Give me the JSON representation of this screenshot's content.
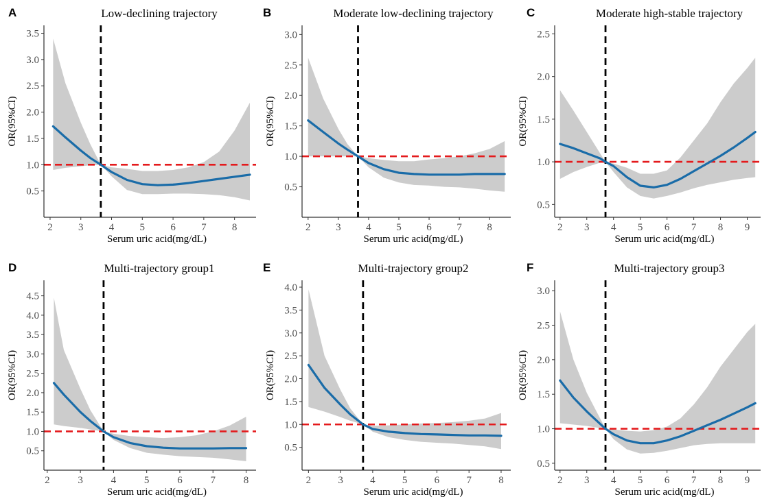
{
  "chart_data": [
    {
      "panel": "A",
      "type": "line",
      "title": "Low-declining trajectory",
      "xlabel": "Serum uric acid(mg/dL)",
      "ylabel": "OR(95%CI)",
      "xlim": [
        1.8,
        8.7
      ],
      "ylim": [
        0.0,
        3.65
      ],
      "xticks": [
        2,
        3,
        4,
        5,
        6,
        7,
        8
      ],
      "yticks": [
        0.5,
        1.0,
        1.5,
        2.0,
        2.5,
        3.0,
        3.5
      ],
      "ytick_labels": [
        "0.5",
        "1.0",
        "1.5",
        "2.0",
        "2.5",
        "3.0",
        "3.5"
      ],
      "reference_x": 3.65,
      "reference_y": 1.0,
      "colors": {
        "curve": "#1a6ca8",
        "band": "#cccccc",
        "ref_h": "#e41a1c",
        "ref_v": "#000000"
      },
      "series": [
        {
          "name": "",
          "x": [
            2.1,
            2.5,
            3.0,
            3.3,
            3.65,
            4.0,
            4.5,
            5.0,
            5.5,
            6.0,
            6.5,
            7.0,
            7.5,
            8.0,
            8.5
          ],
          "y": [
            1.73,
            1.52,
            1.27,
            1.13,
            1.0,
            0.86,
            0.71,
            0.63,
            0.61,
            0.62,
            0.65,
            0.69,
            0.73,
            0.77,
            0.81
          ]
        },
        {
          "name": "",
          "x": [
            2.1,
            2.5,
            3.0,
            3.3,
            3.65,
            4.0,
            4.5,
            5.0,
            5.5,
            6.0,
            6.5,
            7.0,
            7.5,
            8.0,
            8.5
          ],
          "lower": [
            0.9,
            0.94,
            0.97,
            0.99,
            1.0,
            0.78,
            0.52,
            0.44,
            0.44,
            0.45,
            0.45,
            0.44,
            0.42,
            0.38,
            0.32
          ],
          "upper": [
            3.4,
            2.55,
            1.8,
            1.4,
            1.0,
            0.95,
            0.92,
            0.88,
            0.88,
            0.9,
            0.95,
            1.05,
            1.25,
            1.65,
            2.18
          ]
        }
      ]
    },
    {
      "panel": "B",
      "type": "line",
      "title": "Moderate low-declining trajectory",
      "xlabel": "Serum uric acid(mg/dL)",
      "ylabel": "OR(95%CI)",
      "xlim": [
        1.8,
        8.7
      ],
      "ylim": [
        0.0,
        3.15
      ],
      "xticks": [
        2,
        3,
        4,
        5,
        6,
        7,
        8
      ],
      "yticks": [
        0.5,
        1.0,
        1.5,
        2.0,
        2.5,
        3.0
      ],
      "ytick_labels": [
        "0.5",
        "1.0",
        "1.5",
        "2.0",
        "2.5",
        "3.0"
      ],
      "reference_x": 3.65,
      "reference_y": 1.0,
      "colors": {
        "curve": "#1a6ca8",
        "band": "#cccccc",
        "ref_h": "#e41a1c",
        "ref_v": "#000000"
      },
      "series": [
        {
          "name": "",
          "x": [
            2.0,
            2.5,
            3.0,
            3.3,
            3.65,
            4.0,
            4.5,
            5.0,
            5.5,
            6.0,
            6.5,
            7.0,
            7.5,
            8.0,
            8.5
          ],
          "y": [
            1.59,
            1.4,
            1.21,
            1.11,
            1.0,
            0.89,
            0.79,
            0.73,
            0.71,
            0.7,
            0.7,
            0.7,
            0.71,
            0.71,
            0.71
          ]
        },
        {
          "name": "",
          "x": [
            2.0,
            2.5,
            3.0,
            3.3,
            3.65,
            4.0,
            4.5,
            5.0,
            5.5,
            6.0,
            6.5,
            7.0,
            7.5,
            8.0,
            8.5
          ],
          "lower": [
            1.0,
            1.0,
            1.0,
            1.0,
            1.0,
            0.82,
            0.65,
            0.57,
            0.53,
            0.52,
            0.5,
            0.49,
            0.47,
            0.44,
            0.42
          ],
          "upper": [
            2.62,
            1.95,
            1.45,
            1.2,
            1.0,
            0.97,
            0.94,
            0.92,
            0.92,
            0.95,
            0.97,
            1.0,
            1.05,
            1.12,
            1.25
          ]
        }
      ]
    },
    {
      "panel": "C",
      "type": "line",
      "title": "Moderate high-stable trajectory",
      "xlabel": "Serum uric acid(mg/dL)",
      "ylabel": "OR(95%CI)",
      "xlim": [
        1.8,
        9.5
      ],
      "ylim": [
        0.35,
        2.6
      ],
      "xticks": [
        2,
        3,
        4,
        5,
        6,
        7,
        8,
        9
      ],
      "yticks": [
        0.5,
        1.0,
        1.5,
        2.0,
        2.5
      ],
      "ytick_labels": [
        "0.5",
        "1.0",
        "1.5",
        "2.0",
        "2.5"
      ],
      "reference_x": 3.7,
      "reference_y": 1.0,
      "colors": {
        "curve": "#1a6ca8",
        "band": "#cccccc",
        "ref_h": "#e41a1c",
        "ref_v": "#000000"
      },
      "series": [
        {
          "name": "",
          "x": [
            2.0,
            2.5,
            3.0,
            3.5,
            3.7,
            4.0,
            4.5,
            5.0,
            5.5,
            6.0,
            6.5,
            7.0,
            7.5,
            8.0,
            8.5,
            9.0,
            9.3
          ],
          "y": [
            1.21,
            1.16,
            1.1,
            1.04,
            1.0,
            0.95,
            0.82,
            0.72,
            0.7,
            0.73,
            0.8,
            0.89,
            0.98,
            1.07,
            1.17,
            1.28,
            1.35
          ]
        },
        {
          "name": "",
          "x": [
            2.0,
            2.5,
            3.0,
            3.5,
            3.7,
            4.0,
            4.5,
            5.0,
            5.5,
            6.0,
            6.5,
            7.0,
            7.5,
            8.0,
            8.5,
            9.0,
            9.3
          ],
          "lower": [
            0.8,
            0.88,
            0.94,
            0.99,
            1.0,
            0.88,
            0.7,
            0.6,
            0.57,
            0.6,
            0.64,
            0.69,
            0.73,
            0.76,
            0.79,
            0.81,
            0.82
          ],
          "upper": [
            1.84,
            1.6,
            1.35,
            1.1,
            1.0,
            0.98,
            0.93,
            0.86,
            0.86,
            0.9,
            1.05,
            1.25,
            1.45,
            1.7,
            1.92,
            2.1,
            2.22
          ]
        }
      ]
    },
    {
      "panel": "D",
      "type": "line",
      "title": "Multi-trajectory group1",
      "xlabel": "Serum uric acid(mg/dL)",
      "ylabel": "OR(95%CI)",
      "xlim": [
        1.9,
        8.3
      ],
      "ylim": [
        0.0,
        4.9
      ],
      "xticks": [
        2,
        3,
        4,
        5,
        6,
        7,
        8
      ],
      "yticks": [
        0.5,
        1.0,
        1.5,
        2.0,
        2.5,
        3.0,
        3.5,
        4.0,
        4.5
      ],
      "ytick_labels": [
        "0.5",
        "1.0",
        "1.5",
        "2.0",
        "2.5",
        "3.0",
        "3.5",
        "4.0",
        "4.5"
      ],
      "reference_x": 3.7,
      "reference_y": 1.0,
      "colors": {
        "curve": "#1a6ca8",
        "band": "#cccccc",
        "ref_h": "#e41a1c",
        "ref_v": "#000000"
      },
      "series": [
        {
          "name": "",
          "x": [
            2.2,
            2.5,
            3.0,
            3.3,
            3.7,
            4.0,
            4.5,
            5.0,
            5.5,
            6.0,
            6.5,
            7.0,
            7.5,
            8.0
          ],
          "y": [
            2.25,
            1.95,
            1.5,
            1.27,
            1.0,
            0.85,
            0.7,
            0.62,
            0.58,
            0.56,
            0.56,
            0.56,
            0.57,
            0.57
          ]
        },
        {
          "name": "",
          "x": [
            2.2,
            2.5,
            3.0,
            3.3,
            3.7,
            4.0,
            4.5,
            5.0,
            5.5,
            6.0,
            6.5,
            7.0,
            7.5,
            8.0
          ],
          "lower": [
            1.18,
            1.14,
            1.09,
            1.05,
            1.0,
            0.78,
            0.57,
            0.45,
            0.4,
            0.36,
            0.34,
            0.32,
            0.28,
            0.23
          ],
          "upper": [
            4.45,
            3.1,
            2.1,
            1.55,
            1.0,
            0.94,
            0.88,
            0.85,
            0.83,
            0.85,
            0.9,
            1.0,
            1.15,
            1.38
          ]
        }
      ]
    },
    {
      "panel": "E",
      "type": "line",
      "title": "Multi-trajectory group2",
      "xlabel": "Serum uric acid(mg/dL)",
      "ylabel": "OR(95%CI)",
      "xlim": [
        1.8,
        8.3
      ],
      "ylim": [
        0.0,
        4.15
      ],
      "xticks": [
        2,
        3,
        4,
        5,
        6,
        7,
        8
      ],
      "yticks": [
        0.5,
        1.0,
        1.5,
        2.0,
        2.5,
        3.0,
        3.5,
        4.0
      ],
      "ytick_labels": [
        "0.5",
        "1.0",
        "1.5",
        "2.0",
        "2.5",
        "3.0",
        "3.5",
        "4.0"
      ],
      "reference_x": 3.7,
      "reference_y": 1.0,
      "colors": {
        "curve": "#1a6ca8",
        "band": "#cccccc",
        "ref_h": "#e41a1c",
        "ref_v": "#000000"
      },
      "series": [
        {
          "name": "",
          "x": [
            2.0,
            2.5,
            3.0,
            3.3,
            3.7,
            4.0,
            4.5,
            5.0,
            5.5,
            6.0,
            6.5,
            7.0,
            7.5,
            8.0
          ],
          "y": [
            2.3,
            1.8,
            1.43,
            1.22,
            1.0,
            0.9,
            0.84,
            0.81,
            0.79,
            0.78,
            0.77,
            0.76,
            0.76,
            0.75
          ]
        },
        {
          "name": "",
          "x": [
            2.0,
            2.5,
            3.0,
            3.3,
            3.7,
            4.0,
            4.5,
            5.0,
            5.5,
            6.0,
            6.5,
            7.0,
            7.5,
            8.0
          ],
          "lower": [
            1.38,
            1.28,
            1.16,
            1.08,
            1.0,
            0.84,
            0.72,
            0.66,
            0.62,
            0.6,
            0.58,
            0.55,
            0.52,
            0.46
          ],
          "upper": [
            3.95,
            2.5,
            1.75,
            1.35,
            1.0,
            0.97,
            0.98,
            1.0,
            1.02,
            1.03,
            1.05,
            1.08,
            1.13,
            1.25
          ]
        }
      ]
    },
    {
      "panel": "F",
      "type": "line",
      "title": "Multi-trajectory group3",
      "xlabel": "Serum uric acid(mg/dL)",
      "ylabel": "OR(95%CI)",
      "xlim": [
        1.8,
        9.5
      ],
      "ylim": [
        0.4,
        3.15
      ],
      "xticks": [
        2,
        3,
        4,
        5,
        6,
        7,
        8,
        9
      ],
      "yticks": [
        0.5,
        1.0,
        1.5,
        2.0,
        2.5,
        3.0
      ],
      "ytick_labels": [
        "0.5",
        "1.0",
        "1.5",
        "2.0",
        "2.5",
        "3.0"
      ],
      "reference_x": 3.7,
      "reference_y": 1.0,
      "colors": {
        "curve": "#1a6ca8",
        "band": "#cccccc",
        "ref_h": "#e41a1c",
        "ref_v": "#000000"
      },
      "series": [
        {
          "name": "",
          "x": [
            2.0,
            2.5,
            3.0,
            3.5,
            3.7,
            4.0,
            4.5,
            5.0,
            5.5,
            6.0,
            6.5,
            7.0,
            7.5,
            8.0,
            8.5,
            9.0,
            9.3
          ],
          "y": [
            1.7,
            1.45,
            1.25,
            1.07,
            1.0,
            0.92,
            0.83,
            0.79,
            0.79,
            0.83,
            0.89,
            0.97,
            1.05,
            1.13,
            1.22,
            1.31,
            1.37
          ]
        },
        {
          "name": "",
          "x": [
            2.0,
            2.5,
            3.0,
            3.5,
            3.7,
            4.0,
            4.5,
            5.0,
            5.5,
            6.0,
            6.5,
            7.0,
            7.5,
            8.0,
            8.5,
            9.0,
            9.3
          ],
          "lower": [
            1.08,
            1.06,
            1.04,
            1.01,
            1.0,
            0.85,
            0.7,
            0.64,
            0.65,
            0.68,
            0.72,
            0.76,
            0.78,
            0.79,
            0.79,
            0.79,
            0.79
          ],
          "upper": [
            2.7,
            2.0,
            1.52,
            1.15,
            1.0,
            0.99,
            0.97,
            0.96,
            0.98,
            1.03,
            1.15,
            1.35,
            1.6,
            1.9,
            2.15,
            2.4,
            2.52
          ]
        }
      ]
    }
  ]
}
